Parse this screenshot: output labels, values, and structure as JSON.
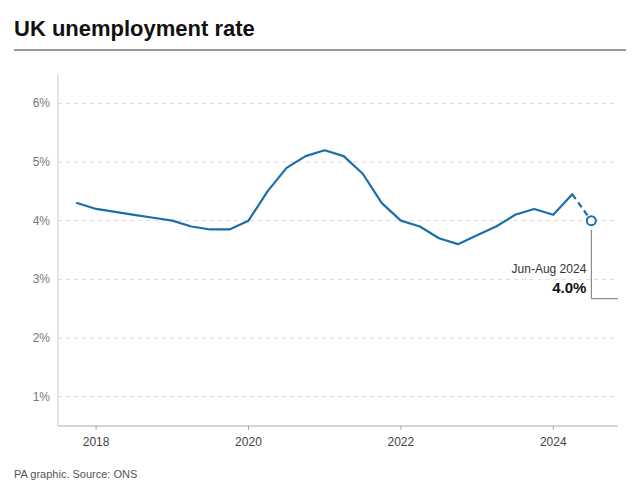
{
  "chart_data": {
    "type": "line",
    "title": "UK unemployment rate",
    "source": "PA graphic. Source: ONS",
    "x": [
      2017.75,
      2018.0,
      2018.25,
      2018.5,
      2018.75,
      2019.0,
      2019.25,
      2019.5,
      2019.75,
      2020.0,
      2020.25,
      2020.5,
      2020.75,
      2021.0,
      2021.25,
      2021.5,
      2021.75,
      2022.0,
      2022.25,
      2022.5,
      2022.75,
      2023.0,
      2023.25,
      2023.5,
      2023.75,
      2024.0,
      2024.25,
      2024.5
    ],
    "values": [
      4.3,
      4.2,
      4.15,
      4.1,
      4.05,
      4.0,
      3.9,
      3.85,
      3.85,
      4.0,
      4.5,
      4.9,
      5.1,
      5.2,
      5.1,
      4.8,
      4.3,
      4.0,
      3.9,
      3.7,
      3.6,
      3.75,
      3.9,
      4.1,
      4.2,
      4.1,
      4.45,
      4.0
    ],
    "color": "#1a6fa8",
    "xlim": [
      2017.5,
      2024.85
    ],
    "xticks": [
      2018,
      2020,
      2022,
      2024
    ],
    "ylim": [
      0.5,
      6.5
    ],
    "yticks": [
      {
        "value": 1,
        "label": "1%"
      },
      {
        "value": 2,
        "label": "2%"
      },
      {
        "value": 3,
        "label": "3%"
      },
      {
        "value": 4,
        "label": "4%"
      },
      {
        "value": 5,
        "label": "5%"
      },
      {
        "value": 6,
        "label": "6%"
      }
    ],
    "grid": true,
    "annotation": {
      "x": 2024.5,
      "y": 4.0,
      "label": "Jun-Aug 2024",
      "value": "4.0%"
    }
  }
}
